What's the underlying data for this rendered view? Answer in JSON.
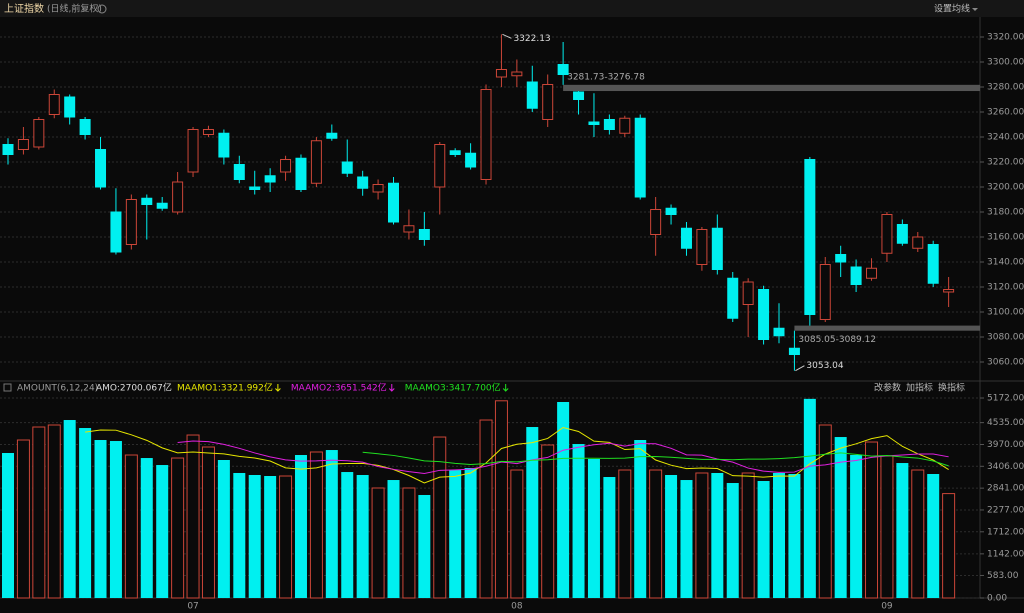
{
  "chart_data": [
    {
      "type": "candlestick",
      "title": "上证指数",
      "subtitle": "(日线,前复权)",
      "menu": "设置均线",
      "categories": [
        null,
        null,
        null,
        null,
        null,
        null,
        null,
        null,
        null,
        null,
        null,
        null,
        "07",
        null,
        null,
        null,
        null,
        null,
        null,
        null,
        null,
        null,
        null,
        null,
        null,
        null,
        null,
        null,
        null,
        null,
        null,
        null,
        null,
        "08",
        null,
        null,
        null,
        null,
        null,
        null,
        null,
        null,
        null,
        null,
        null,
        null,
        null,
        null,
        null,
        null,
        null,
        null,
        null,
        null,
        null,
        null,
        null,
        "09",
        null,
        null,
        null,
        null
      ],
      "open": [
        3234,
        3230,
        3232,
        3258,
        3272,
        3254,
        3230,
        3180,
        3154,
        3191,
        3187,
        3180,
        3212,
        3242,
        3243,
        3218,
        3200,
        3209,
        3212,
        3223,
        3203,
        3243,
        3220,
        3208,
        3196,
        3203,
        3164,
        3166,
        3200,
        3229,
        3227,
        3206,
        3288,
        3289,
        3284,
        3254,
        3298,
        3276,
        3252,
        3254,
        3243,
        3255,
        3162,
        3183,
        3167,
        3138,
        3167,
        3127,
        3106,
        3118,
        3087,
        3071,
        3222,
        3094,
        3146,
        3136,
        3127,
        3147,
        3170,
        3151,
        3154,
        3116
      ],
      "high": [
        3239,
        3248,
        3256,
        3278,
        3274,
        3256,
        3240,
        3199,
        3194,
        3194,
        3192,
        3212,
        3248,
        3249,
        3246,
        3225,
        3213,
        3215,
        3225,
        3226,
        3240,
        3250,
        3238,
        3213,
        3206,
        3208,
        3182,
        3180,
        3236,
        3231,
        3235,
        3282,
        3322.13,
        3302,
        3297,
        3290,
        3316,
        3276.78,
        3275,
        3258,
        3257,
        3258,
        3192,
        3186,
        3172,
        3168,
        3178,
        3132,
        3127,
        3121,
        3107,
        3085.05,
        3224,
        3144,
        3153,
        3142,
        3143,
        3180,
        3174,
        3164,
        3157,
        3128
      ],
      "low": [
        3218,
        3226,
        3230,
        3255,
        3250,
        3238,
        3198,
        3146,
        3150,
        3158,
        3181,
        3178,
        3208,
        3240,
        3218,
        3203,
        3194,
        3196,
        3205,
        3196,
        3200,
        3237,
        3208,
        3193,
        3190,
        3170,
        3158,
        3153,
        3178,
        3224,
        3214,
        3202,
        3280,
        3280,
        3260,
        3248,
        3281.73,
        3258,
        3240,
        3242,
        3240,
        3190,
        3145,
        3170,
        3145,
        3133,
        3130,
        3092,
        3080,
        3074,
        3075,
        3053.04,
        3089.12,
        3092,
        3128,
        3116,
        3125,
        3140,
        3153,
        3148,
        3120,
        3104
      ],
      "close": [
        3226,
        3238,
        3254,
        3274,
        3256,
        3242,
        3200,
        3148,
        3190,
        3186,
        3183,
        3204,
        3246,
        3246,
        3224,
        3206,
        3198,
        3204,
        3222,
        3198,
        3237,
        3239,
        3211,
        3199,
        3202,
        3172,
        3169,
        3158,
        3234,
        3226,
        3216,
        3278,
        3294,
        3292,
        3263,
        3282,
        3290,
        3270,
        3250,
        3246,
        3255,
        3192,
        3182,
        3178,
        3151,
        3166,
        3134,
        3095,
        3124,
        3078,
        3081,
        3066,
        3098,
        3138,
        3140,
        3122,
        3135,
        3178,
        3155,
        3160,
        3123,
        3118
      ],
      "up_color": "#cc4638",
      "down_color": "#00f0f0",
      "gaps": [
        "3281.73-3276.78",
        "3085.05-3089.12"
      ],
      "ylim": [
        3045.6,
        3335.2
      ],
      "yticks": [
        {
          "value": 3060,
          "label": "3060.00"
        },
        {
          "value": 3080,
          "label": "3080.00"
        },
        {
          "value": 3100,
          "label": "3100.00"
        },
        {
          "value": 3120,
          "label": "3120.00"
        },
        {
          "value": 3140,
          "label": "3140.00"
        },
        {
          "value": 3160,
          "label": "3160.00"
        },
        {
          "value": 3180,
          "label": "3180.00"
        },
        {
          "value": 3200,
          "label": "3200.00"
        },
        {
          "value": 3220,
          "label": "3220.00"
        },
        {
          "value": 3240,
          "label": "3240.00"
        },
        {
          "value": 3260,
          "label": "3260.00"
        },
        {
          "value": 3280,
          "label": "3280.00"
        },
        {
          "value": 3300,
          "label": "3300.00"
        },
        {
          "value": 3320,
          "label": "3320.00"
        }
      ],
      "grid": true
    },
    {
      "type": "bar",
      "title": "AMOUNT(6,12,24)",
      "value_label": "AMO:2700.067亿",
      "buttons": [
        "改参数",
        "加指标",
        "换指标"
      ],
      "values": [
        3750,
        4086,
        4422,
        4474,
        4603,
        4396,
        4086,
        4060,
        3698,
        3620,
        3439,
        3620,
        4215,
        3905,
        3569,
        3233,
        3181,
        3155,
        3155,
        3698,
        3776,
        3827,
        3258,
        3181,
        2845,
        3051,
        2845,
        2664,
        4163,
        3310,
        3362,
        4603,
        5100,
        3310,
        4422,
        3957,
        5069,
        3982,
        3595,
        3129,
        3310,
        4086,
        3310,
        3181,
        3051,
        3233,
        3233,
        2974,
        3233,
        3026,
        3233,
        3207,
        5150,
        4474,
        4163,
        3698,
        4034,
        3672,
        3491,
        3310,
        3207,
        2700.067
      ],
      "series": [
        {
          "name": "MAAMO1:3321.992亿",
          "color": "#e6e600",
          "values": [
            null,
            null,
            null,
            null,
            null,
            4289,
            4345,
            4340,
            4220,
            4077,
            3883,
            3754,
            3775,
            3750,
            3728,
            3664,
            3621,
            3543,
            3366,
            3332,
            3366,
            3465,
            3478,
            3483,
            3431,
            3323,
            3168,
            2974,
            3125,
            3146,
            3233,
            3491,
            3867,
            3975,
            4018,
            4126,
            4410,
            4307,
            4056,
            4026,
            3840,
            3862,
            3569,
            3435,
            3345,
            3362,
            3349,
            3164,
            3151,
            3125,
            3155,
            3151,
            3471,
            3721,
            3876,
            3988,
            4121,
            4199,
            3922,
            3728,
            3569,
            3321.992
          ]
        },
        {
          "name": "MAAMO2:3651.542亿",
          "color": "#e020e0",
          "values": [
            null,
            null,
            null,
            null,
            null,
            null,
            null,
            null,
            null,
            null,
            null,
            4022,
            4060,
            4045,
            3974,
            3871,
            3752,
            3649,
            3571,
            3541,
            3547,
            3565,
            3550,
            3513,
            3399,
            3328,
            3267,
            3220,
            3302,
            3315,
            3332,
            3407,
            3518,
            3475,
            3572,
            3636,
            3822,
            3899,
            3962,
            4001,
            3929,
            3994,
            3990,
            3871,
            3701,
            3694,
            3595,
            3513,
            3360,
            3280,
            3250,
            3257,
            3410,
            3443,
            3514,
            3557,
            3638,
            3675,
            3697,
            3725,
            3723,
            3651.542
          ]
        },
        {
          "name": "MAAMO3:3417.700亿",
          "color": "#20e020",
          "values": [
            null,
            null,
            null,
            null,
            null,
            null,
            null,
            null,
            null,
            null,
            null,
            null,
            null,
            null,
            null,
            null,
            null,
            null,
            null,
            null,
            null,
            null,
            null,
            3768,
            3730,
            3687,
            3621,
            3546,
            3527,
            3482,
            3452,
            3474,
            3533,
            3520,
            3561,
            3575,
            3611,
            3614,
            3615,
            3611,
            3616,
            3655,
            3661,
            3639,
            3610,
            3585,
            3584,
            3575,
            3591,
            3590,
            3606,
            3629,
            3670,
            3719,
            3752,
            3714,
            3670,
            3685,
            3646,
            3619,
            3542,
            3417.7
          ]
        }
      ],
      "ylim": [
        0,
        5250
      ],
      "yticks": [
        {
          "value": 0,
          "label": "0.00"
        },
        {
          "value": 583,
          "label": "583.00"
        },
        {
          "value": 1142,
          "label": "1142.00"
        },
        {
          "value": 1712,
          "label": "1712.00"
        },
        {
          "value": 2277,
          "label": "2277.00"
        },
        {
          "value": 2841,
          "label": "2841.00"
        },
        {
          "value": 3406,
          "label": "3406.00"
        },
        {
          "value": 3970,
          "label": "3970.00"
        },
        {
          "value": 4535,
          "label": "4535.00"
        },
        {
          "value": 5172,
          "label": "5172.00"
        }
      ],
      "grid": true
    }
  ]
}
